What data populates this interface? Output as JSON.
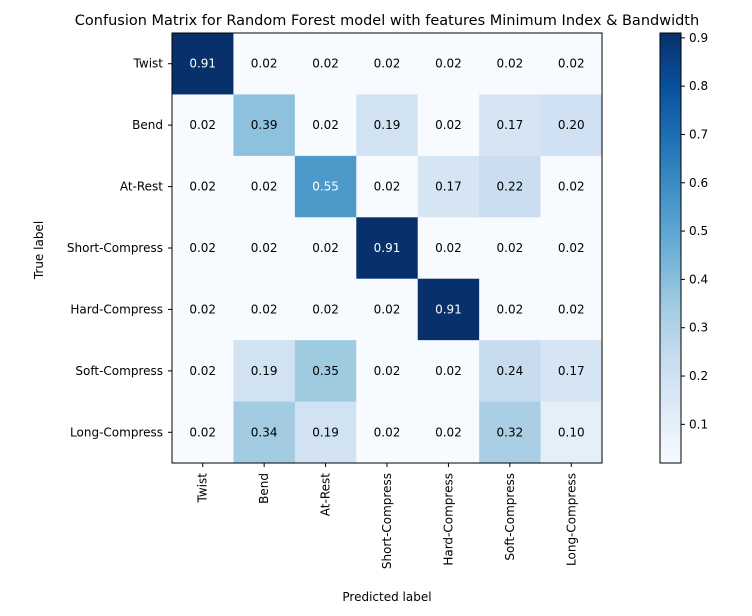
{
  "chart_data": {
    "type": "heatmap",
    "title": "Confusion Matrix for Random Forest model with features Minimum Index & Bandwidth",
    "xlabel": "Predicted label",
    "ylabel": "True label",
    "x_categories": [
      "Twist",
      "Bend",
      "At-Rest",
      "Short-Compress",
      "Hard-Compress",
      "Soft-Compress",
      "Long-Compress"
    ],
    "y_categories": [
      "Twist",
      "Bend",
      "At-Rest",
      "Short-Compress",
      "Hard-Compress",
      "Soft-Compress",
      "Long-Compress"
    ],
    "values": [
      [
        0.91,
        0.02,
        0.02,
        0.02,
        0.02,
        0.02,
        0.02
      ],
      [
        0.02,
        0.39,
        0.02,
        0.19,
        0.02,
        0.17,
        0.2
      ],
      [
        0.02,
        0.02,
        0.55,
        0.02,
        0.17,
        0.22,
        0.02
      ],
      [
        0.02,
        0.02,
        0.02,
        0.91,
        0.02,
        0.02,
        0.02
      ],
      [
        0.02,
        0.02,
        0.02,
        0.02,
        0.91,
        0.02,
        0.02
      ],
      [
        0.02,
        0.19,
        0.35,
        0.02,
        0.02,
        0.24,
        0.17
      ],
      [
        0.02,
        0.34,
        0.19,
        0.02,
        0.02,
        0.32,
        0.1
      ]
    ],
    "colormap": "Blues",
    "value_range": [
      0.02,
      0.91
    ],
    "colorbar_ticks": [
      "0.1",
      "0.2",
      "0.3",
      "0.4",
      "0.5",
      "0.6",
      "0.7",
      "0.8",
      "0.9"
    ],
    "colorbar_tick_values": [
      0.1,
      0.2,
      0.3,
      0.4,
      0.5,
      0.6,
      0.7,
      0.8,
      0.9
    ],
    "colors": {
      "low": "#f7fbff",
      "high": "#08306b",
      "light_text": "#ffffff",
      "dark_text": "#000000"
    }
  }
}
